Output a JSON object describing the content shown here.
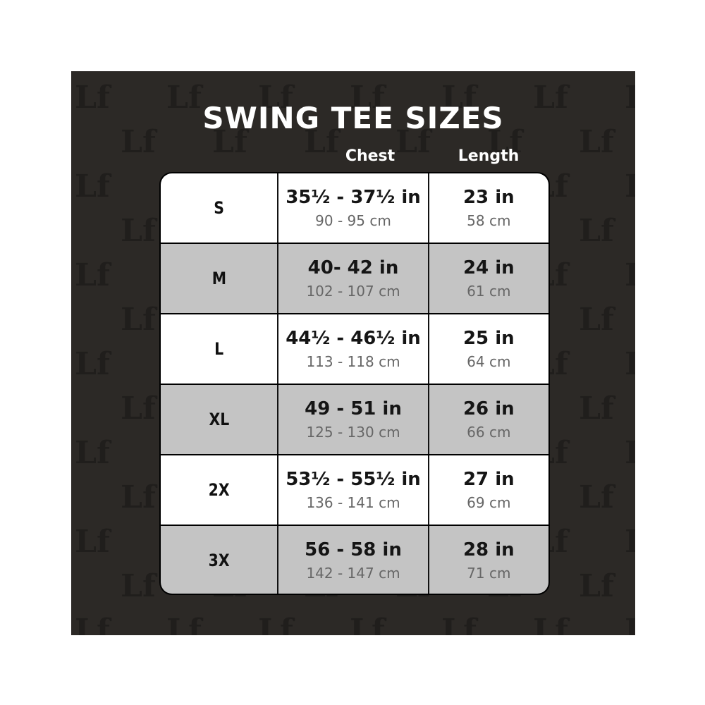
{
  "title": "SWING TEE SIZES",
  "watermark_text": "Lf",
  "columns": {
    "chest": "Chest",
    "length": "Length"
  },
  "colors": {
    "background": "#2c2926",
    "row_light": "#ffffff",
    "row_dark": "#c4c4c4",
    "border": "#111111"
  },
  "rows": [
    {
      "size": "S",
      "chest_in": "35½ - 37½ in",
      "chest_cm": "90 - 95 cm",
      "length_in": "23 in",
      "length_cm": "58 cm"
    },
    {
      "size": "M",
      "chest_in": "40- 42 in",
      "chest_cm": "102 - 107 cm",
      "length_in": "24 in",
      "length_cm": "61 cm"
    },
    {
      "size": "L",
      "chest_in": "44½ - 46½  in",
      "chest_cm": "113 - 118 cm",
      "length_in": "25 in",
      "length_cm": "64 cm"
    },
    {
      "size": "XL",
      "chest_in": "49 - 51 in",
      "chest_cm": "125 - 130 cm",
      "length_in": "26 in",
      "length_cm": "66 cm"
    },
    {
      "size": "2X",
      "chest_in": "53½ - 55½ in",
      "chest_cm": "136 - 141 cm",
      "length_in": "27 in",
      "length_cm": "69 cm"
    },
    {
      "size": "3X",
      "chest_in": "56 - 58 in",
      "chest_cm": "142 - 147 cm",
      "length_in": "28 in",
      "length_cm": "71 cm"
    }
  ]
}
